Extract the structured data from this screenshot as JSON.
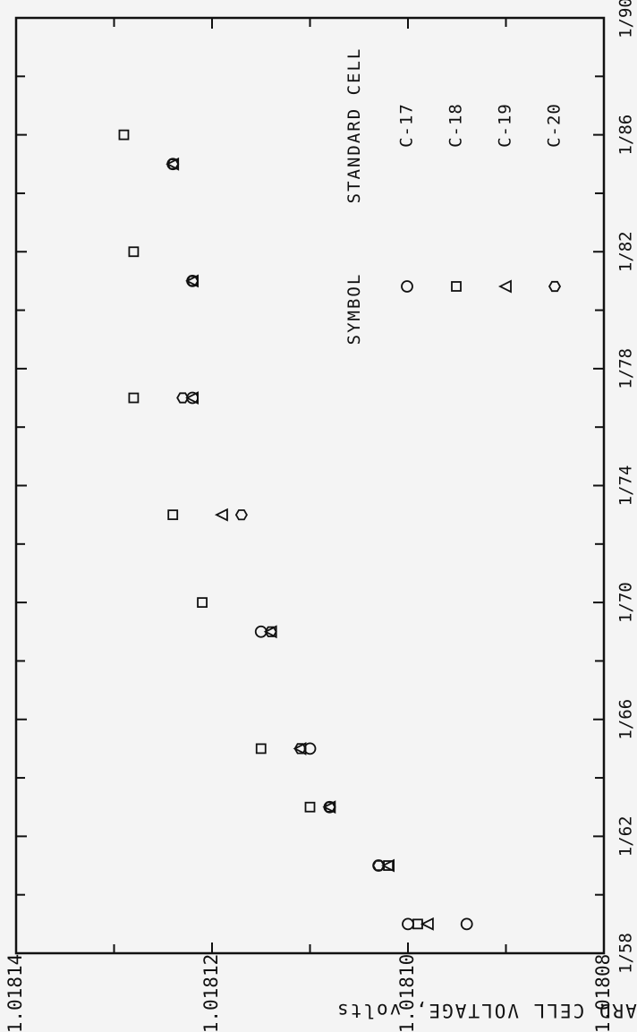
{
  "chart_data": {
    "type": "scatter",
    "xlabel": "",
    "ylabel": "STANDARD CELL VOLTAGE, volts",
    "x_ticks": [
      "1/58",
      "1/62",
      "1/66",
      "1/70",
      "1/74",
      "1/78",
      "1/82",
      "1/86",
      "1/90"
    ],
    "y_ticks": [
      "1.01808",
      "1.01810",
      "1.01812",
      "1.01814"
    ],
    "xlim": [
      "1/58",
      "1/90"
    ],
    "ylim": [
      1.01808,
      1.01814
    ],
    "grid": false,
    "legend_position": "upper-left (rotated)",
    "legend": {
      "header_symbol": "SYMBOL",
      "header_cell": "STANDARD CELL",
      "entries": [
        {
          "marker": "circle",
          "label": "C-17"
        },
        {
          "marker": "square",
          "label": "C-18"
        },
        {
          "marker": "triangle",
          "label": "C-19"
        },
        {
          "marker": "hexagon",
          "label": "C-20"
        }
      ]
    },
    "series": [
      {
        "name": "C-17",
        "marker": "circle",
        "points": [
          [
            "1/59",
            1.0181
          ],
          [
            "1/59",
            1.018094
          ],
          [
            "1/61",
            1.018103
          ],
          [
            "1/63",
            1.018108
          ],
          [
            "1/65",
            1.01811
          ],
          [
            "1/69",
            1.018115
          ],
          [
            "1/77",
            1.018122
          ],
          [
            "1/81",
            1.018122
          ],
          [
            "1/85",
            1.018124
          ]
        ]
      },
      {
        "name": "C-18",
        "marker": "square",
        "points": [
          [
            "1/59",
            1.018099
          ],
          [
            "1/61",
            1.018102
          ],
          [
            "1/63",
            1.01811
          ],
          [
            "1/65",
            1.018115
          ],
          [
            "1/70",
            1.018121
          ],
          [
            "1/73",
            1.018124
          ],
          [
            "1/77",
            1.018128
          ],
          [
            "1/82",
            1.018128
          ],
          [
            "1/86",
            1.018129
          ]
        ]
      },
      {
        "name": "C-19",
        "marker": "triangle",
        "points": [
          [
            "1/59",
            1.018098
          ],
          [
            "1/61",
            1.018102
          ],
          [
            "1/63",
            1.018108
          ],
          [
            "1/65",
            1.018111
          ],
          [
            "1/69",
            1.018114
          ],
          [
            "1/73",
            1.018119
          ],
          [
            "1/77",
            1.018122
          ],
          [
            "1/81",
            1.018122
          ],
          [
            "1/85",
            1.018124
          ]
        ]
      },
      {
        "name": "C-20",
        "marker": "hexagon",
        "points": [
          [
            "1/61",
            1.018103
          ],
          [
            "1/63",
            1.018108
          ],
          [
            "1/65",
            1.018111
          ],
          [
            "1/69",
            1.018114
          ],
          [
            "1/73",
            1.018117
          ],
          [
            "1/77",
            1.018123
          ],
          [
            "1/81",
            1.018122
          ],
          [
            "1/85",
            1.018124
          ]
        ]
      }
    ]
  }
}
